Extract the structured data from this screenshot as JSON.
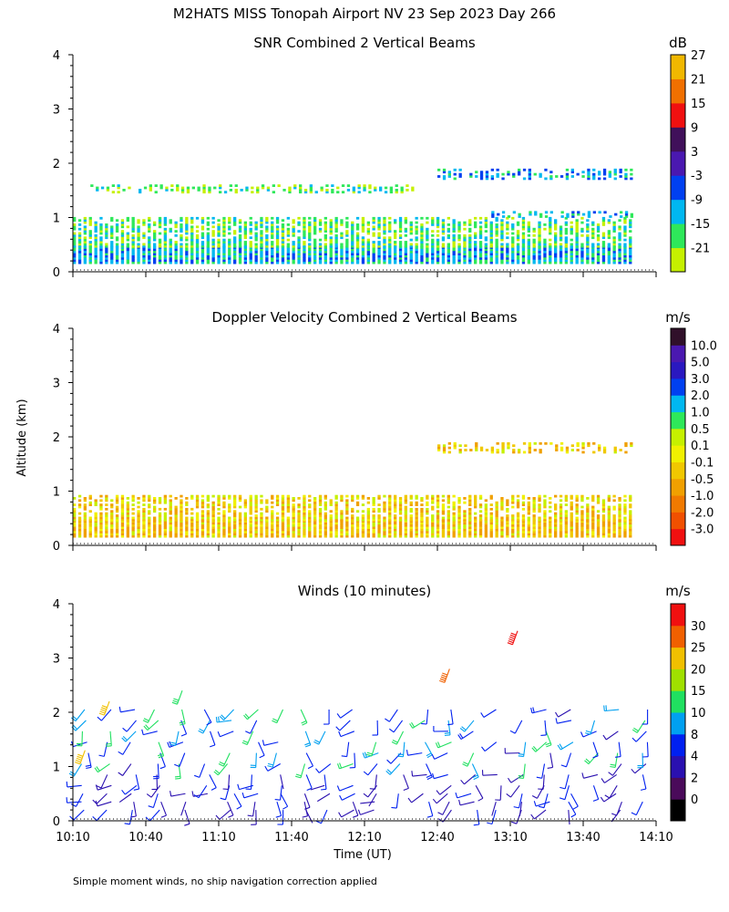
{
  "title": "M2HATS MISS Tonopah Airport NV  23 Sep 2023 Day 266",
  "y_axis_label": "Altitude (km)",
  "x_axis_label": "Time (UT)",
  "footnote": "Simple moment winds, no ship navigation correction applied",
  "chart_data": [
    {
      "type": "heatmap",
      "title": "SNR Combined 2 Vertical Beams",
      "unit": "dB",
      "ylim": [
        0,
        4
      ],
      "y_ticks": [
        "0",
        "1",
        "2",
        "3",
        "4"
      ],
      "x_time_range": [
        "10:10",
        "14:10"
      ],
      "colorbar": {
        "colors": [
          "#c6f000",
          "#2ee85a",
          "#00b8f0",
          "#0040f0",
          "#4a18b0",
          "#40105a",
          "#f01010",
          "#f07000",
          "#f0b800"
        ],
        "labels": [
          "-21",
          "-15",
          "-9",
          "-3",
          "3",
          "9",
          "15",
          "21",
          "27"
        ]
      },
      "layers": [
        {
          "altitude_km": [
            0.15,
            0.45
          ],
          "time": [
            "10:10",
            "14:00"
          ],
          "snr_db": -12
        },
        {
          "altitude_km": [
            0.45,
            1.0
          ],
          "time": [
            "10:10",
            "14:00"
          ],
          "snr_db": -18
        },
        {
          "altitude_km": [
            1.45,
            1.6
          ],
          "time": [
            "10:15",
            "12:30"
          ],
          "snr_db": -19
        },
        {
          "altitude_km": [
            1.7,
            1.9
          ],
          "time": [
            "12:40",
            "14:00"
          ],
          "snr_db": -11
        },
        {
          "altitude_km": [
            1.0,
            1.1
          ],
          "time": [
            "13:00",
            "14:00"
          ],
          "snr_db": -12
        }
      ]
    },
    {
      "type": "heatmap",
      "title": "Doppler Velocity Combined 2 Vertical Beams",
      "unit": "m/s",
      "ylim": [
        0,
        4
      ],
      "y_ticks": [
        "0",
        "1",
        "2",
        "3",
        "4"
      ],
      "x_time_range": [
        "10:10",
        "14:10"
      ],
      "colorbar": {
        "colors": [
          "#f01010",
          "#f05000",
          "#f07a00",
          "#f0a000",
          "#f0c800",
          "#f0f000",
          "#c6f000",
          "#2ee85a",
          "#00b8f0",
          "#0040f0",
          "#2a18c0",
          "#4a18b0",
          "#30102a"
        ],
        "labels": [
          "-3.0",
          "-2.0",
          "-1.0",
          "-0.5",
          "-0.1",
          "0.1",
          "0.5",
          "1.0",
          "2.0",
          "3.0",
          "5.0",
          "10.0"
        ]
      },
      "layers": [
        {
          "altitude_km": [
            0.15,
            0.45
          ],
          "time": [
            "10:10",
            "14:00"
          ],
          "velocity_ms": -0.4
        },
        {
          "altitude_km": [
            0.45,
            0.9
          ],
          "time": [
            "10:10",
            "14:00"
          ],
          "velocity_ms": -0.2
        },
        {
          "altitude_km": [
            1.7,
            1.9
          ],
          "time": [
            "12:40",
            "14:00"
          ],
          "velocity_ms": -0.3
        }
      ]
    },
    {
      "type": "scatter",
      "title": "Winds (10 minutes)",
      "unit": "m/s",
      "ylim": [
        0,
        4
      ],
      "y_ticks": [
        "0",
        "1",
        "2",
        "3",
        "4"
      ],
      "x_ticks": [
        "10:10",
        "10:40",
        "11:10",
        "11:40",
        "12:10",
        "12:40",
        "13:10",
        "13:40",
        "14:10"
      ],
      "colorbar": {
        "colors": [
          "#000000",
          "#4a0a5a",
          "#2a10b0",
          "#0020f0",
          "#00a0f0",
          "#20e060",
          "#a0e000",
          "#f0c000",
          "#f06000",
          "#f01010"
        ],
        "labels": [
          "0",
          "2",
          "4",
          "8",
          "10",
          "15",
          "20",
          "25",
          "30"
        ]
      },
      "barb_times": [
        "10:15",
        "10:25",
        "10:35",
        "10:45",
        "10:55",
        "11:05",
        "11:15",
        "11:25",
        "11:35",
        "11:45",
        "11:55",
        "12:05",
        "12:15",
        "12:25",
        "12:35",
        "12:45",
        "12:55",
        "13:05",
        "13:15",
        "13:25",
        "13:35",
        "13:45",
        "13:55",
        "14:05"
      ],
      "barb_altitudes_km": [
        0.2,
        0.35,
        0.5,
        0.65,
        0.85,
        1.05,
        1.25,
        1.45,
        1.65,
        1.85,
        2.05
      ],
      "notable_barbs": [
        {
          "time": "13:13",
          "altitude_km": 3.5,
          "speed_ms": 31
        },
        {
          "time": "12:45",
          "altitude_km": 2.8,
          "speed_ms": 27
        },
        {
          "time": "10:25",
          "altitude_km": 2.2,
          "speed_ms": 24
        },
        {
          "time": "10:55",
          "altitude_km": 2.4,
          "speed_ms": 15
        },
        {
          "time": "10:15",
          "altitude_km": 1.3,
          "speed_ms": 25
        }
      ]
    }
  ]
}
